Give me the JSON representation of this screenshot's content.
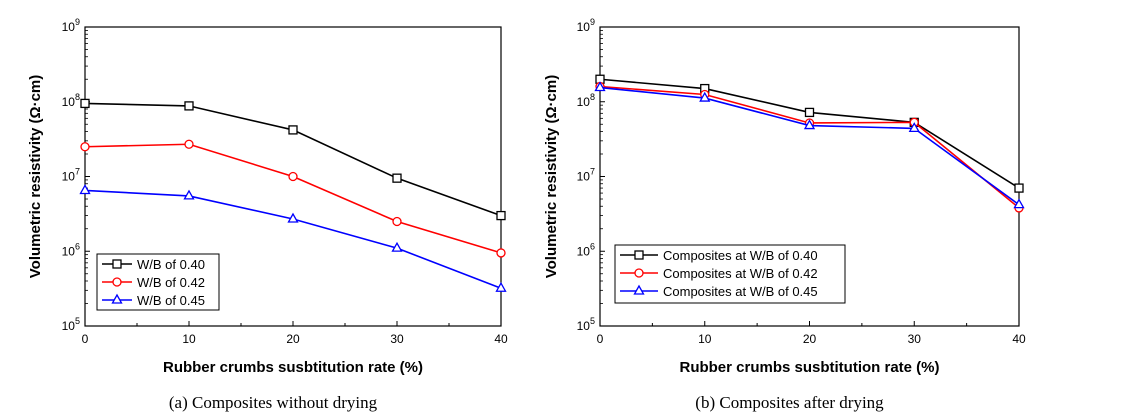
{
  "chart_data": [
    {
      "type": "line",
      "caption": "(a) Composites without drying",
      "xlabel": "Rubber crumbs susbtitution rate (%)",
      "ylabel": "Volumetric resistivity (Ω·cm)",
      "yscale": "log",
      "xlim": [
        0,
        40
      ],
      "ylim": [
        100000,
        1000000000
      ],
      "x_ticks": [
        0,
        10,
        20,
        30,
        40
      ],
      "y_ticks": [
        {
          "base": "10",
          "exp": "5"
        },
        {
          "base": "10",
          "exp": "6"
        },
        {
          "base": "10",
          "exp": "7"
        },
        {
          "base": "10",
          "exp": "8"
        },
        {
          "base": "10",
          "exp": "9"
        }
      ],
      "legend_position": "bottom-left",
      "x": [
        0,
        10,
        20,
        30,
        40
      ],
      "series": [
        {
          "name": "W/B of 0.40",
          "color": "#000000",
          "marker": "square",
          "values": [
            95000000,
            88000000,
            42000000,
            9500000,
            3000000
          ]
        },
        {
          "name": "W/B of 0.42",
          "color": "#ff0000",
          "marker": "circle",
          "values": [
            25000000,
            27000000,
            10000000,
            2500000,
            950000
          ]
        },
        {
          "name": "W/B of 0.45",
          "color": "#0000ff",
          "marker": "triangle",
          "values": [
            6500000,
            5500000,
            2700000,
            1100000,
            320000
          ]
        }
      ]
    },
    {
      "type": "line",
      "caption": "(b) Composites after drying",
      "xlabel": "Rubber crumbs susbtitution rate (%)",
      "ylabel": "Volumetric resistivity (Ω·cm)",
      "yscale": "log",
      "xlim": [
        0,
        40
      ],
      "ylim": [
        100000,
        1000000000
      ],
      "x_ticks": [
        0,
        10,
        20,
        30,
        40
      ],
      "y_ticks": [
        {
          "base": "10",
          "exp": "5"
        },
        {
          "base": "10",
          "exp": "6"
        },
        {
          "base": "10",
          "exp": "7"
        },
        {
          "base": "10",
          "exp": "8"
        },
        {
          "base": "10",
          "exp": "9"
        }
      ],
      "legend_position": "bottom-left",
      "x": [
        0,
        10,
        20,
        30,
        40
      ],
      "series": [
        {
          "name": "Composites at W/B of 0.40",
          "color": "#000000",
          "marker": "square",
          "values": [
            200000000,
            150000000,
            72000000,
            53000000,
            7000000
          ]
        },
        {
          "name": "Composites at W/B of 0.42",
          "color": "#ff0000",
          "marker": "circle",
          "values": [
            160000000,
            125000000,
            52000000,
            53000000,
            3800000
          ]
        },
        {
          "name": "Composites at W/B of 0.45",
          "color": "#0000ff",
          "marker": "triangle",
          "values": [
            155000000,
            112000000,
            48000000,
            44000000,
            4200000
          ]
        }
      ]
    }
  ]
}
